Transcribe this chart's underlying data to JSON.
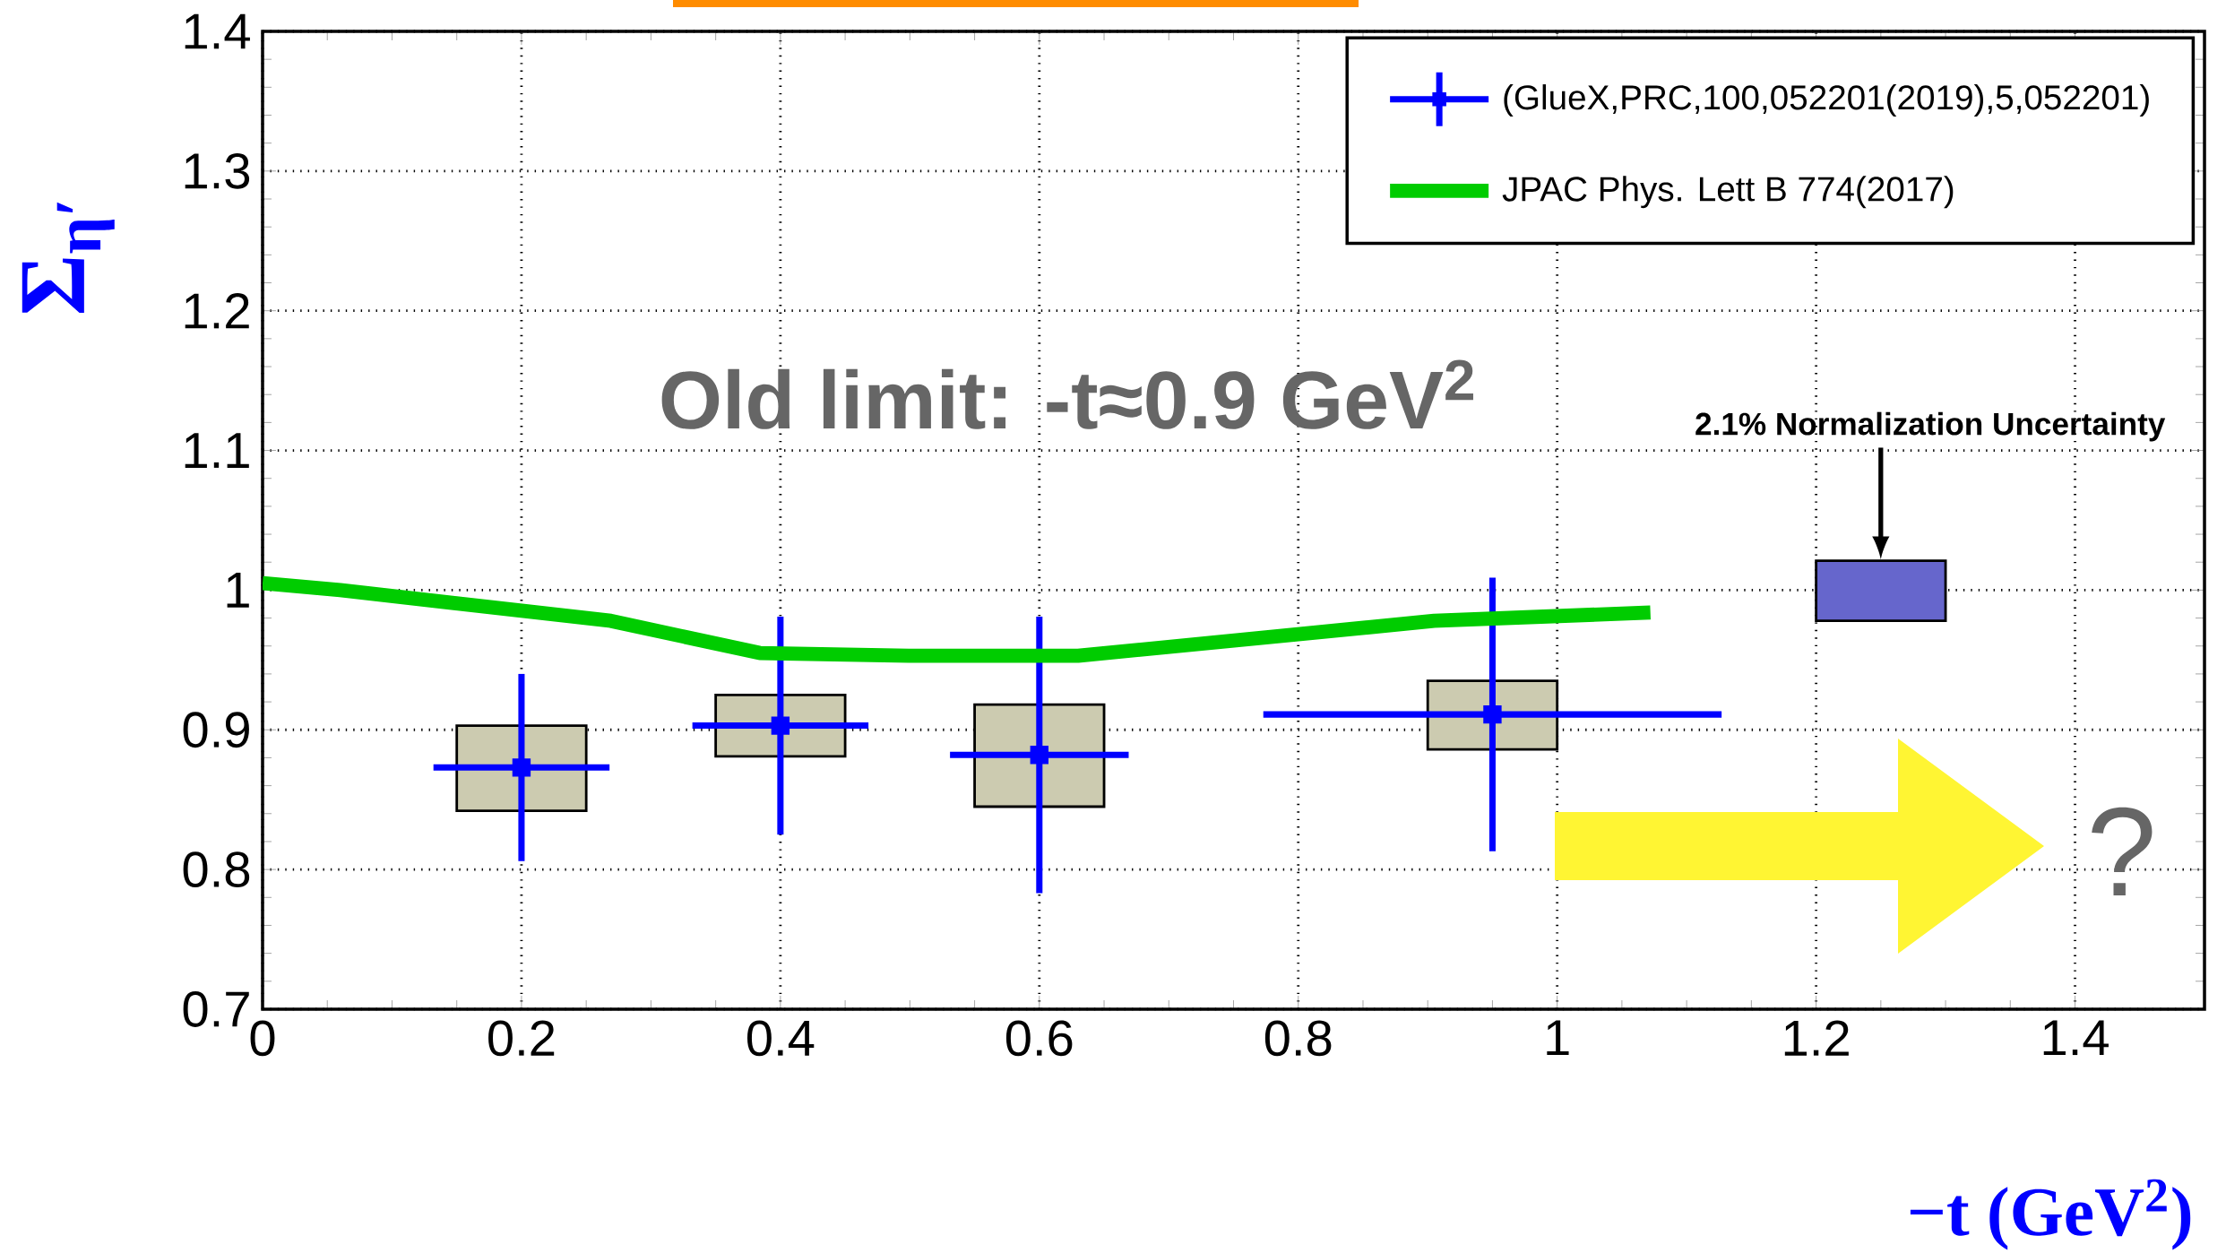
{
  "chart_data": {
    "type": "scatter",
    "xlabel": "−t (GeV$^{2}$)",
    "ylabel": "Σ$_{η′}$",
    "xlim": [
      0,
      1.5
    ],
    "ylim": [
      0.7,
      1.4
    ],
    "xticks": [
      0,
      0.2,
      0.4,
      0.6,
      0.8,
      1,
      1.2,
      1.4
    ],
    "yticks": [
      0.7,
      0.8,
      0.9,
      1,
      1.1,
      1.2,
      1.3,
      1.4
    ],
    "grid": true,
    "legend": "top right",
    "annotations": [
      "Old limit: -t≈0.9 GeV$^{2}$",
      "2.1% Normalization Uncertainty",
      "?"
    ],
    "series": [
      {
        "name": "(GlueX,PRC,100,052201(2019),5,052201)",
        "marker": "square",
        "color": "#0000ff",
        "x": [
          0.2,
          0.4,
          0.6,
          0.95
        ],
        "values": [
          0.873,
          0.903,
          0.882,
          0.911
        ],
        "errors": [
          0.067,
          0.078,
          0.099,
          0.098
        ],
        "xerrors": [
          0.068,
          0.068,
          0.069,
          0.177
        ]
      },
      {
        "name": "JPAC Phys. Lett B 774(2017)",
        "type": "line",
        "color": "#00cc00",
        "x": [
          0,
          0.06,
          0.269,
          0.384,
          0.499,
          0.63,
          0.784,
          0.905,
          1.072
        ],
        "values": [
          1.005,
          1.0,
          0.978,
          0.955,
          0.953,
          0.953,
          0.967,
          0.978,
          0.984
        ]
      },
      {
        "type": "bar",
        "color": "#cccbb0",
        "x": [
          0.2,
          0.4,
          0.6,
          0.95
        ],
        "base": [
          0.842,
          0.881,
          0.845,
          0.886
        ],
        "values": [
          0.061,
          0.044,
          0.073,
          0.049
        ]
      },
      {
        "type": "bar",
        "color": "#6666cc",
        "x": [
          1.25
        ],
        "base": [
          0.978
        ],
        "values": [
          0.043
        ]
      }
    ]
  }
}
